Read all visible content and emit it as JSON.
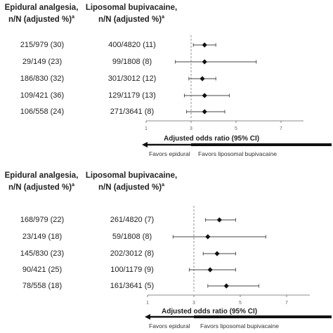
{
  "columns": {
    "left": {
      "line1": "Epidural analgesia,",
      "line2": "n/N (adjusted %)",
      "sup": "a"
    },
    "right": {
      "line1": "Liposomal bupivacaine,",
      "line2": "n/N (adjusted %)",
      "sup": "a"
    }
  },
  "axis": {
    "label": "Adjusted odds ratio (95% CI)",
    "favors_left": "Favors epidural",
    "favors_right": "Favors liposomal bupivacaine",
    "ticks": [
      "1",
      "3",
      "5",
      "7"
    ]
  },
  "chart_data": [
    {
      "type": "forest",
      "xlabel": "Adjusted odds ratio (95% CI)",
      "xlim": [
        1,
        8
      ],
      "reference_line": 3,
      "rows": [
        {
          "epidural": "215/979 (30)",
          "liposomal": "400/4820 (11)",
          "or": 3.6,
          "ci": [
            3.1,
            4.1
          ]
        },
        {
          "epidural": "29/149 (23)",
          "liposomal": "99/1808 (8)",
          "or": 3.6,
          "ci": [
            2.3,
            5.9
          ]
        },
        {
          "epidural": "186/830 (32)",
          "liposomal": "301/3012 (12)",
          "or": 3.5,
          "ci": [
            2.9,
            4.1
          ]
        },
        {
          "epidural": "109/421 (36)",
          "liposomal": "129/1179 (13)",
          "or": 3.6,
          "ci": [
            2.7,
            4.7
          ]
        },
        {
          "epidural": "106/558 (24)",
          "liposomal": "271/3641 (8)",
          "or": 3.6,
          "ci": [
            2.8,
            4.5
          ]
        }
      ]
    },
    {
      "type": "forest",
      "xlabel": "Adjusted odds ratio (95% CI)",
      "xlim": [
        1,
        8
      ],
      "reference_line": 3,
      "rows": [
        {
          "epidural": "168/979 (22)",
          "liposomal": "261/4820 (7)",
          "or": 4.1,
          "ci": [
            3.5,
            4.8
          ]
        },
        {
          "epidural": "23/149 (18)",
          "liposomal": "59/1808 (8)",
          "or": 3.6,
          "ci": [
            2.1,
            6.1
          ]
        },
        {
          "epidural": "145/830 (23)",
          "liposomal": "202/3012 (8)",
          "or": 4.0,
          "ci": [
            3.4,
            4.8
          ]
        },
        {
          "epidural": "90/421 (25)",
          "liposomal": "100/1179 (9)",
          "or": 3.7,
          "ci": [
            2.8,
            4.8
          ]
        },
        {
          "epidural": "78/558 (18)",
          "liposomal": "161/3641 (5)",
          "or": 4.4,
          "ci": [
            3.6,
            5.8
          ]
        }
      ]
    }
  ]
}
